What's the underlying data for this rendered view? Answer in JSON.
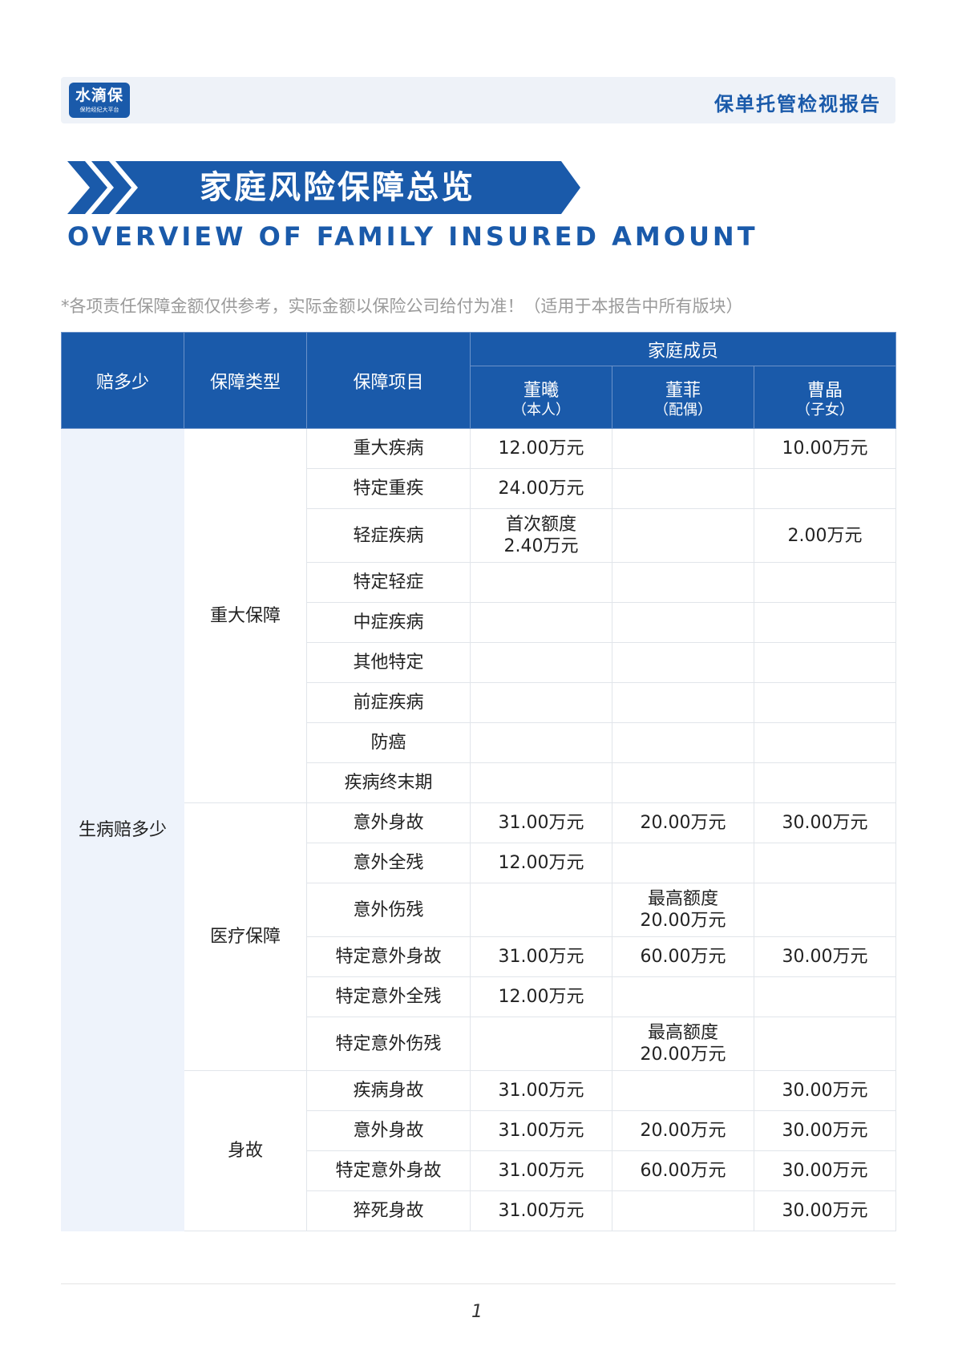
{
  "header": {
    "logo_text": "水滴保",
    "logo_sub": "保险经纪大平台",
    "report_title": "保单托管检视报告"
  },
  "section": {
    "title_cn": "家庭风险保障总览",
    "title_en": "OVERVIEW OF FAMILY INSURED AMOUNT"
  },
  "note": "*各项责任保障金额仅供参考，实际金额以保险公司给付为准！（适用于本报告中所有版块）",
  "table": {
    "headers": {
      "col1": "赔多少",
      "col2": "保障类型",
      "col3": "保障项目",
      "family": "家庭成员"
    },
    "members": [
      {
        "name": "董曦",
        "role": "（本人）"
      },
      {
        "name": "董菲",
        "role": "（配偶）"
      },
      {
        "name": "曹晶",
        "role": "（子女）"
      }
    ],
    "level1": "生病赔多少",
    "groups": [
      "重大保障",
      "医疗保障",
      "身故"
    ],
    "rows": [
      {
        "item": "重大疾病",
        "v": [
          "12.00万元",
          "",
          "10.00万元"
        ]
      },
      {
        "item": "特定重疾",
        "v": [
          "24.00万元",
          "",
          ""
        ]
      },
      {
        "item": "轻症疾病",
        "v": [
          "首次额度",
          "",
          "2.00万元"
        ],
        "v_line2": [
          "2.40万元",
          "",
          ""
        ]
      },
      {
        "item": "特定轻症",
        "v": [
          "",
          "",
          ""
        ]
      },
      {
        "item": "中症疾病",
        "v": [
          "",
          "",
          ""
        ]
      },
      {
        "item": "其他特定",
        "v": [
          "",
          "",
          ""
        ]
      },
      {
        "item": "前症疾病",
        "v": [
          "",
          "",
          ""
        ]
      },
      {
        "item": "防癌",
        "v": [
          "",
          "",
          ""
        ]
      },
      {
        "item": "疾病终末期",
        "v": [
          "",
          "",
          ""
        ]
      },
      {
        "item": "意外身故",
        "v": [
          "31.00万元",
          "20.00万元",
          "30.00万元"
        ]
      },
      {
        "item": "意外全残",
        "v": [
          "12.00万元",
          "",
          ""
        ]
      },
      {
        "item": "意外伤残",
        "v": [
          "",
          "最高额度",
          ""
        ],
        "v_line2": [
          "",
          "20.00万元",
          ""
        ]
      },
      {
        "item": "特定意外身故",
        "v": [
          "31.00万元",
          "60.00万元",
          "30.00万元"
        ]
      },
      {
        "item": "特定意外全残",
        "v": [
          "12.00万元",
          "",
          ""
        ]
      },
      {
        "item": "特定意外伤残",
        "v": [
          "",
          "最高额度",
          ""
        ],
        "v_line2": [
          "",
          "20.00万元",
          ""
        ]
      },
      {
        "item": "疾病身故",
        "v": [
          "31.00万元",
          "",
          "30.00万元"
        ]
      },
      {
        "item": "意外身故",
        "v": [
          "31.00万元",
          "20.00万元",
          "30.00万元"
        ]
      },
      {
        "item": "特定意外身故",
        "v": [
          "31.00万元",
          "60.00万元",
          "30.00万元"
        ]
      },
      {
        "item": "猝死身故",
        "v": [
          "31.00万元",
          "",
          "30.00万元"
        ]
      }
    ]
  },
  "footer": {
    "page_number": "1"
  },
  "colors": {
    "brand_blue": "#1a5aaa",
    "light_band": "#eef2f8"
  }
}
